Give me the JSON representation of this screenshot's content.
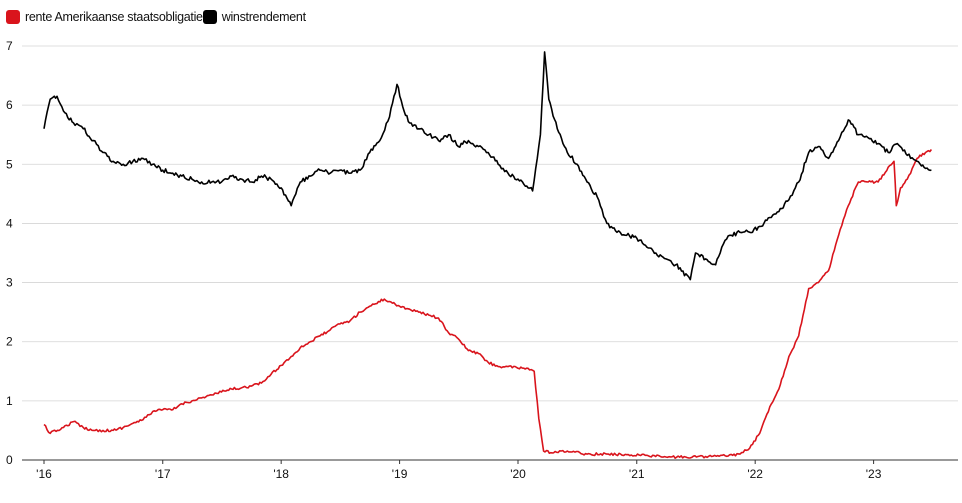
{
  "chart_data": {
    "type": "line",
    "title": "",
    "xlabel": "",
    "ylabel": "",
    "ylim": [
      0,
      7
    ],
    "xlim": [
      "2016-01-01",
      "2023-06-30"
    ],
    "yticks": [
      0,
      1,
      2,
      3,
      4,
      5,
      6,
      7
    ],
    "xticks": [
      {
        "date": "2016-01-01",
        "label": "'16"
      },
      {
        "date": "2017-01-01",
        "label": "'17"
      },
      {
        "date": "2018-01-01",
        "label": "'18"
      },
      {
        "date": "2019-01-01",
        "label": "'19"
      },
      {
        "date": "2020-01-01",
        "label": "'20"
      },
      {
        "date": "2021-01-01",
        "label": "'21"
      },
      {
        "date": "2022-01-01",
        "label": "'22"
      },
      {
        "date": "2023-01-01",
        "label": "'23"
      }
    ],
    "grid": "horizontal",
    "legend_position": "top-left",
    "series": [
      {
        "name": "rente Amerikaanse staatsobligatie",
        "color": "#d9141c",
        "points": [
          [
            "2016-01-01",
            0.6
          ],
          [
            "2016-01-20",
            0.45
          ],
          [
            "2016-03-01",
            0.55
          ],
          [
            "2016-04-01",
            0.65
          ],
          [
            "2016-05-01",
            0.55
          ],
          [
            "2016-06-01",
            0.5
          ],
          [
            "2016-07-01",
            0.5
          ],
          [
            "2016-08-01",
            0.5
          ],
          [
            "2016-09-01",
            0.55
          ],
          [
            "2016-10-01",
            0.62
          ],
          [
            "2016-11-01",
            0.68
          ],
          [
            "2016-12-01",
            0.82
          ],
          [
            "2017-01-01",
            0.85
          ],
          [
            "2017-02-01",
            0.85
          ],
          [
            "2017-03-01",
            0.95
          ],
          [
            "2017-04-01",
            1.0
          ],
          [
            "2017-05-01",
            1.05
          ],
          [
            "2017-06-01",
            1.1
          ],
          [
            "2017-07-01",
            1.15
          ],
          [
            "2017-08-01",
            1.2
          ],
          [
            "2017-09-01",
            1.22
          ],
          [
            "2017-10-01",
            1.25
          ],
          [
            "2017-11-01",
            1.3
          ],
          [
            "2017-12-01",
            1.45
          ],
          [
            "2018-01-01",
            1.6
          ],
          [
            "2018-02-01",
            1.75
          ],
          [
            "2018-03-01",
            1.9
          ],
          [
            "2018-04-01",
            2.0
          ],
          [
            "2018-05-01",
            2.1
          ],
          [
            "2018-06-01",
            2.2
          ],
          [
            "2018-07-01",
            2.3
          ],
          [
            "2018-08-01",
            2.35
          ],
          [
            "2018-09-01",
            2.5
          ],
          [
            "2018-10-01",
            2.6
          ],
          [
            "2018-11-15",
            2.72
          ],
          [
            "2018-12-01",
            2.68
          ],
          [
            "2019-01-01",
            2.6
          ],
          [
            "2019-02-01",
            2.55
          ],
          [
            "2019-03-01",
            2.5
          ],
          [
            "2019-04-01",
            2.45
          ],
          [
            "2019-05-01",
            2.4
          ],
          [
            "2019-06-01",
            2.15
          ],
          [
            "2019-07-01",
            2.05
          ],
          [
            "2019-08-01",
            1.85
          ],
          [
            "2019-09-01",
            1.8
          ],
          [
            "2019-10-01",
            1.65
          ],
          [
            "2019-11-01",
            1.58
          ],
          [
            "2019-12-01",
            1.58
          ],
          [
            "2020-01-01",
            1.55
          ],
          [
            "2020-02-01",
            1.55
          ],
          [
            "2020-02-20",
            1.5
          ],
          [
            "2020-03-05",
            0.7
          ],
          [
            "2020-03-20",
            0.15
          ],
          [
            "2020-04-15",
            0.12
          ],
          [
            "2020-06-01",
            0.15
          ],
          [
            "2020-08-01",
            0.1
          ],
          [
            "2020-10-01",
            0.1
          ],
          [
            "2020-12-01",
            0.09
          ],
          [
            "2021-02-01",
            0.08
          ],
          [
            "2021-04-01",
            0.05
          ],
          [
            "2021-06-01",
            0.05
          ],
          [
            "2021-08-01",
            0.06
          ],
          [
            "2021-10-01",
            0.07
          ],
          [
            "2021-11-15",
            0.1
          ],
          [
            "2021-12-15",
            0.2
          ],
          [
            "2022-01-15",
            0.45
          ],
          [
            "2022-02-15",
            0.9
          ],
          [
            "2022-03-15",
            1.2
          ],
          [
            "2022-04-15",
            1.75
          ],
          [
            "2022-05-15",
            2.1
          ],
          [
            "2022-06-15",
            2.9
          ],
          [
            "2022-07-15",
            3.0
          ],
          [
            "2022-08-15",
            3.2
          ],
          [
            "2022-09-15",
            3.8
          ],
          [
            "2022-10-15",
            4.3
          ],
          [
            "2022-11-15",
            4.7
          ],
          [
            "2022-12-15",
            4.7
          ],
          [
            "2023-01-15",
            4.7
          ],
          [
            "2023-02-15",
            4.95
          ],
          [
            "2023-03-05",
            5.05
          ],
          [
            "2023-03-12",
            4.3
          ],
          [
            "2023-03-25",
            4.6
          ],
          [
            "2023-04-15",
            4.75
          ],
          [
            "2023-05-15",
            5.1
          ],
          [
            "2023-06-10",
            5.2
          ],
          [
            "2023-06-28",
            5.25
          ]
        ]
      },
      {
        "name": "winstrendement",
        "color": "#000000",
        "points": [
          [
            "2016-01-01",
            5.6
          ],
          [
            "2016-01-20",
            6.1
          ],
          [
            "2016-02-10",
            6.15
          ],
          [
            "2016-03-01",
            5.9
          ],
          [
            "2016-04-01",
            5.7
          ],
          [
            "2016-05-01",
            5.6
          ],
          [
            "2016-06-01",
            5.4
          ],
          [
            "2016-07-01",
            5.2
          ],
          [
            "2016-08-01",
            5.05
          ],
          [
            "2016-09-01",
            5.0
          ],
          [
            "2016-10-01",
            5.05
          ],
          [
            "2016-11-01",
            5.1
          ],
          [
            "2016-12-01",
            5.0
          ],
          [
            "2017-01-01",
            4.9
          ],
          [
            "2017-02-01",
            4.85
          ],
          [
            "2017-03-01",
            4.8
          ],
          [
            "2017-04-01",
            4.75
          ],
          [
            "2017-05-01",
            4.7
          ],
          [
            "2017-06-01",
            4.7
          ],
          [
            "2017-07-01",
            4.7
          ],
          [
            "2017-08-01",
            4.8
          ],
          [
            "2017-09-01",
            4.75
          ],
          [
            "2017-10-01",
            4.7
          ],
          [
            "2017-11-01",
            4.8
          ],
          [
            "2017-12-01",
            4.75
          ],
          [
            "2018-01-01",
            4.6
          ],
          [
            "2018-02-01",
            4.3
          ],
          [
            "2018-03-01",
            4.7
          ],
          [
            "2018-04-01",
            4.8
          ],
          [
            "2018-05-01",
            4.9
          ],
          [
            "2018-06-01",
            4.85
          ],
          [
            "2018-07-01",
            4.9
          ],
          [
            "2018-08-01",
            4.85
          ],
          [
            "2018-09-01",
            4.9
          ],
          [
            "2018-10-01",
            5.2
          ],
          [
            "2018-11-01",
            5.4
          ],
          [
            "2018-12-01",
            5.8
          ],
          [
            "2018-12-24",
            6.35
          ],
          [
            "2019-01-15",
            5.9
          ],
          [
            "2019-02-01",
            5.7
          ],
          [
            "2019-03-01",
            5.6
          ],
          [
            "2019-04-01",
            5.5
          ],
          [
            "2019-05-01",
            5.4
          ],
          [
            "2019-06-01",
            5.5
          ],
          [
            "2019-07-01",
            5.3
          ],
          [
            "2019-08-01",
            5.4
          ],
          [
            "2019-09-01",
            5.3
          ],
          [
            "2019-10-01",
            5.2
          ],
          [
            "2019-11-01",
            5.0
          ],
          [
            "2019-12-01",
            4.85
          ],
          [
            "2020-01-01",
            4.75
          ],
          [
            "2020-02-15",
            4.55
          ],
          [
            "2020-03-10",
            5.5
          ],
          [
            "2020-03-23",
            6.9
          ],
          [
            "2020-04-05",
            6.1
          ],
          [
            "2020-05-01",
            5.6
          ],
          [
            "2020-06-01",
            5.2
          ],
          [
            "2020-07-01",
            5.0
          ],
          [
            "2020-08-01",
            4.7
          ],
          [
            "2020-09-01",
            4.45
          ],
          [
            "2020-10-01",
            4.0
          ],
          [
            "2020-11-01",
            3.85
          ],
          [
            "2020-12-01",
            3.8
          ],
          [
            "2021-01-01",
            3.75
          ],
          [
            "2021-02-01",
            3.6
          ],
          [
            "2021-03-01",
            3.5
          ],
          [
            "2021-04-01",
            3.4
          ],
          [
            "2021-05-01",
            3.3
          ],
          [
            "2021-06-15",
            3.05
          ],
          [
            "2021-07-01",
            3.5
          ],
          [
            "2021-08-01",
            3.4
          ],
          [
            "2021-09-01",
            3.3
          ],
          [
            "2021-09-20",
            3.6
          ],
          [
            "2021-10-15",
            3.8
          ],
          [
            "2021-11-15",
            3.85
          ],
          [
            "2021-12-15",
            3.85
          ],
          [
            "2022-01-15",
            3.95
          ],
          [
            "2022-02-15",
            4.1
          ],
          [
            "2022-03-15",
            4.2
          ],
          [
            "2022-04-15",
            4.4
          ],
          [
            "2022-05-15",
            4.7
          ],
          [
            "2022-06-15",
            5.2
          ],
          [
            "2022-07-15",
            5.3
          ],
          [
            "2022-08-15",
            5.1
          ],
          [
            "2022-09-15",
            5.4
          ],
          [
            "2022-10-15",
            5.75
          ],
          [
            "2022-11-15",
            5.5
          ],
          [
            "2022-12-15",
            5.45
          ],
          [
            "2023-01-15",
            5.35
          ],
          [
            "2023-02-15",
            5.2
          ],
          [
            "2023-03-15",
            5.35
          ],
          [
            "2023-04-15",
            5.15
          ],
          [
            "2023-05-15",
            5.05
          ],
          [
            "2023-06-28",
            4.9
          ]
        ]
      }
    ]
  }
}
